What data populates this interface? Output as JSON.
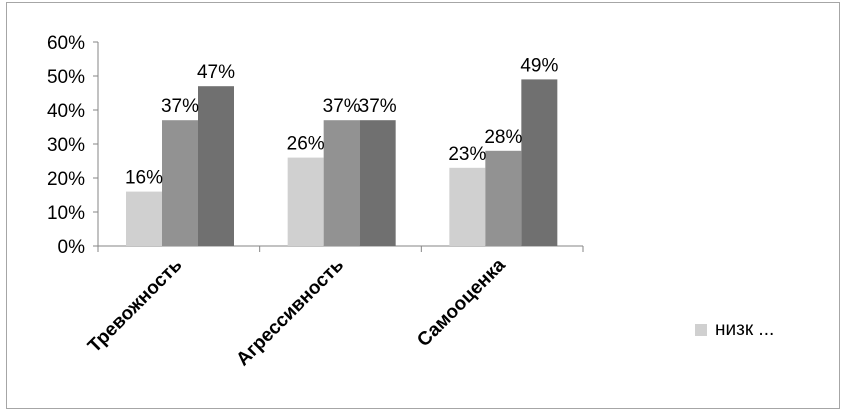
{
  "chart_data": {
    "type": "bar",
    "categories": [
      "Тревожность",
      "Агрессивность",
      "Самооценка"
    ],
    "series": [
      {
        "name": "низк ...",
        "values": [
          16,
          26,
          23
        ],
        "labels": [
          "16%",
          "26%",
          "23%"
        ],
        "color": "#d0d0d0"
      },
      {
        "values": [
          37,
          37,
          28
        ],
        "labels": [
          "37%",
          "37%",
          "28%"
        ],
        "color": "#929292"
      },
      {
        "values": [
          47,
          37,
          49
        ],
        "labels": [
          "47%",
          "37%",
          "49%"
        ],
        "color": "#707070"
      }
    ],
    "y_ticks": [
      0,
      10,
      20,
      30,
      40,
      50,
      60
    ],
    "y_tick_labels": [
      "0%",
      "10%",
      "20%",
      "30%",
      "40%",
      "50%",
      "60%"
    ],
    "ylim": [
      0,
      60
    ],
    "grid": false,
    "legend": {
      "position": "right",
      "visible_entries": [
        "низк ..."
      ]
    },
    "axis_color": "#868686"
  }
}
